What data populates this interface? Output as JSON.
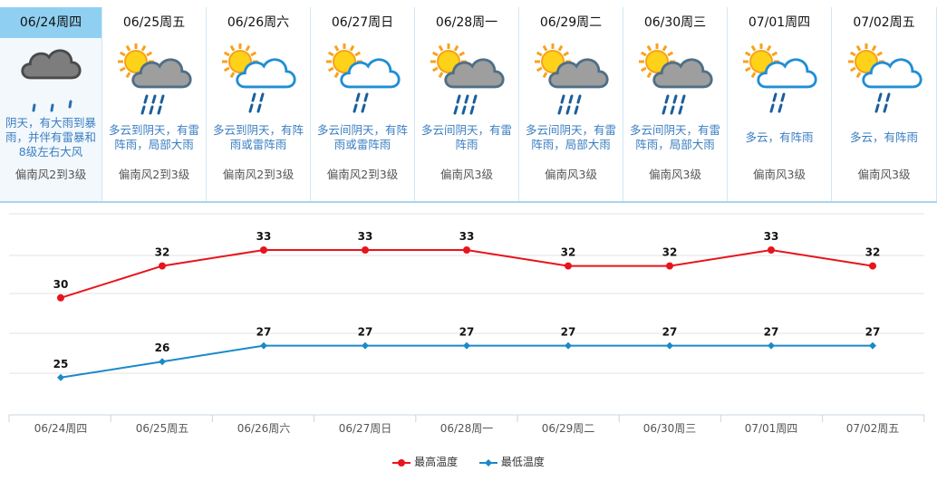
{
  "days": [
    {
      "date": "06/24周四",
      "desc": "阴天，有大雨到暴雨，并伴有雷暴和8级左右大风",
      "wind": "偏南风2到3级",
      "icon": "heavy-rain-cloud-icon",
      "today": true
    },
    {
      "date": "06/25周五",
      "desc": "多云到阴天，有雷阵雨，局部大雨",
      "wind": "偏南风2到3级",
      "icon": "sun-rain-cloud-icon"
    },
    {
      "date": "06/26周六",
      "desc": "多云到阴天，有阵雨或雷阵雨",
      "wind": "偏南风2到3级",
      "icon": "sun-shower-cloud-icon"
    },
    {
      "date": "06/27周日",
      "desc": "多云间阴天，有阵雨或雷阵雨",
      "wind": "偏南风2到3级",
      "icon": "sun-shower-cloud-icon"
    },
    {
      "date": "06/28周一",
      "desc": "多云间阴天，有雷阵雨",
      "wind": "偏南风3级",
      "icon": "sun-rain-cloud-icon"
    },
    {
      "date": "06/29周二",
      "desc": "多云间阴天，有雷阵雨，局部大雨",
      "wind": "偏南风3级",
      "icon": "sun-rain-cloud-icon"
    },
    {
      "date": "06/30周三",
      "desc": "多云间阴天，有雷阵雨，局部大雨",
      "wind": "偏南风3级",
      "icon": "sun-heavy-rain-cloud-icon"
    },
    {
      "date": "07/01周四",
      "desc": "多云，有阵雨",
      "wind": "偏南风3级",
      "icon": "sun-shower-cloud-icon"
    },
    {
      "date": "07/02周五",
      "desc": "多云，有阵雨",
      "wind": "偏南风3级",
      "icon": "sun-shower-cloud-icon"
    }
  ],
  "chart_data": {
    "type": "line",
    "categories": [
      "06/24周四",
      "06/25周五",
      "06/26周六",
      "06/27周日",
      "06/28周一",
      "06/29周二",
      "06/30周三",
      "07/01周四",
      "07/02周五"
    ],
    "series": [
      {
        "name": "最高温度",
        "values": [
          30,
          32,
          33,
          33,
          33,
          32,
          32,
          33,
          32
        ],
        "color": "#e8141c"
      },
      {
        "name": "最低温度",
        "values": [
          25,
          26,
          27,
          27,
          27,
          27,
          27,
          27,
          27
        ],
        "color": "#1a8ac6"
      }
    ],
    "grid": true,
    "legend": "bottom"
  }
}
